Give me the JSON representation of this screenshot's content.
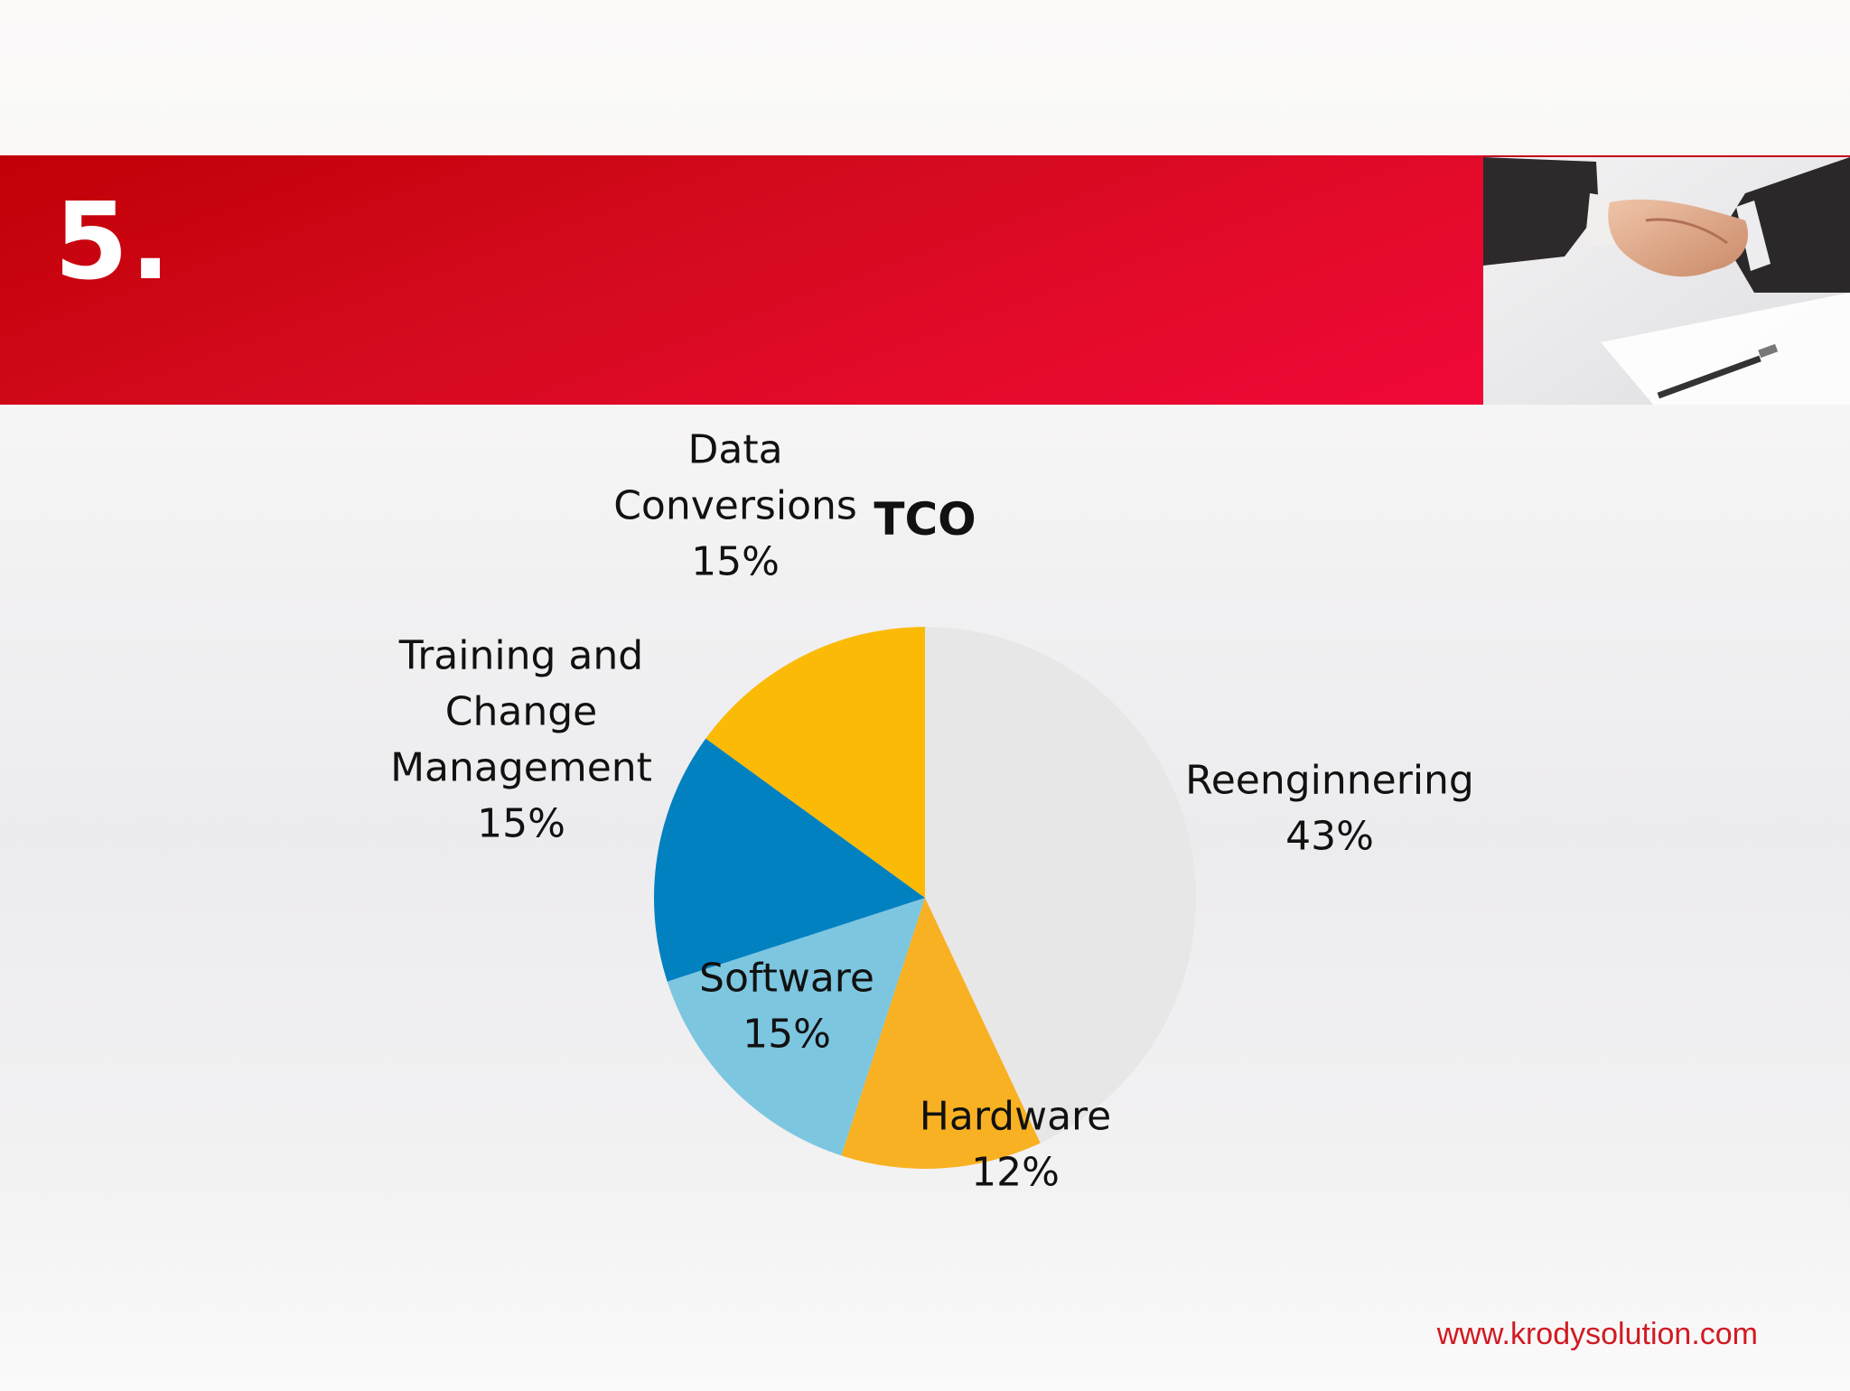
{
  "slide": {
    "number": "5.",
    "footer_url": "www.krodysolution.com"
  },
  "colors": {
    "banner": "#d8081f",
    "accent_url": "#d11a22"
  },
  "chart_data": {
    "type": "pie",
    "title": "TCO",
    "slices": [
      {
        "label": "Reenginnering",
        "value": 43,
        "display": "43%",
        "color": "#e8e7e8"
      },
      {
        "label": "Hardware",
        "value": 12,
        "display": "12%",
        "color": "#f8b122"
      },
      {
        "label": "Software",
        "value": 15,
        "display": "15%",
        "color": "#7cc6e0"
      },
      {
        "label": "Training and Change Management",
        "label_lines": [
          "Training and",
          "Change",
          "Management"
        ],
        "value": 15,
        "display": "15%",
        "color": "#0281c1"
      },
      {
        "label": "Data Conversions",
        "label_lines": [
          "Data",
          "Conversions"
        ],
        "value": 15,
        "display": "15%",
        "color": "#fbba06"
      }
    ],
    "legend": "none"
  }
}
